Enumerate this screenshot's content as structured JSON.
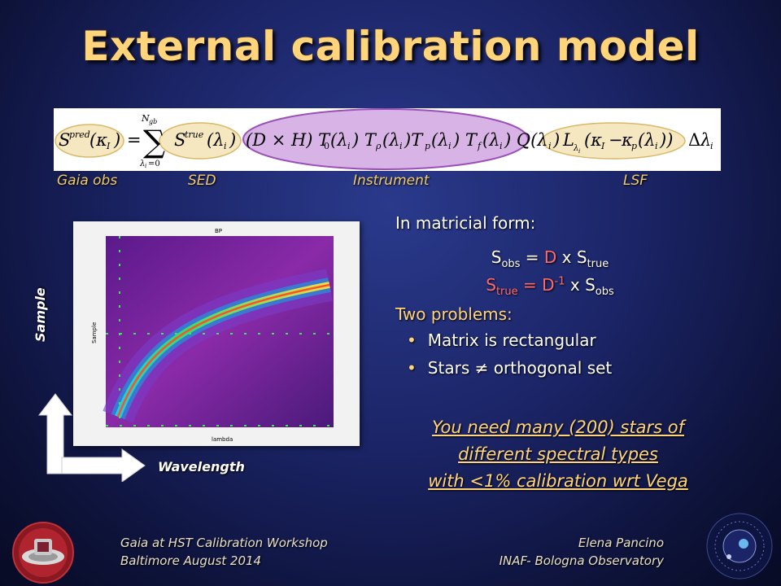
{
  "slide": {
    "title": "External calibration model",
    "equation_labels": {
      "gaia_obs": "Gaia obs",
      "sed": "SED",
      "instrument": "Instrument",
      "lsf": "LSF"
    },
    "plot": {
      "title": "BP",
      "x_label": "lambda",
      "y_label": "Sample",
      "arrow_y_label": "Sample",
      "arrow_x_label": "Wavelength"
    },
    "right": {
      "intro": "In matricial form:",
      "eq1": {
        "s": "S",
        "obs": "obs",
        "eq": " = ",
        "d": "D",
        "x": " x ",
        "s2": "S",
        "true": "true"
      },
      "eq2": {
        "s": "S",
        "true": "true",
        "eq": " = ",
        "d": "D",
        "exp": "-1",
        "x": " x ",
        "s2": "S",
        "obs": "obs"
      },
      "problems_heading": "Two problems:",
      "bullets": [
        "Matrix is rectangular",
        "Stars ≠ orthogonal set"
      ],
      "need_lines": [
        "You need many (200) stars of",
        "different spectral types",
        "with <1% calibration wrt Vega"
      ]
    },
    "footer": {
      "left_line1": "Gaia at HST Calibration Workshop",
      "left_line2": "Baltimore August 2014",
      "right_line1": "Elena Pancino",
      "right_line2": "INAF- Bologna Observatory"
    },
    "colors": {
      "title": "#ffd47a",
      "accent_red": "#ff6a6a",
      "background": "#1b2466"
    }
  }
}
